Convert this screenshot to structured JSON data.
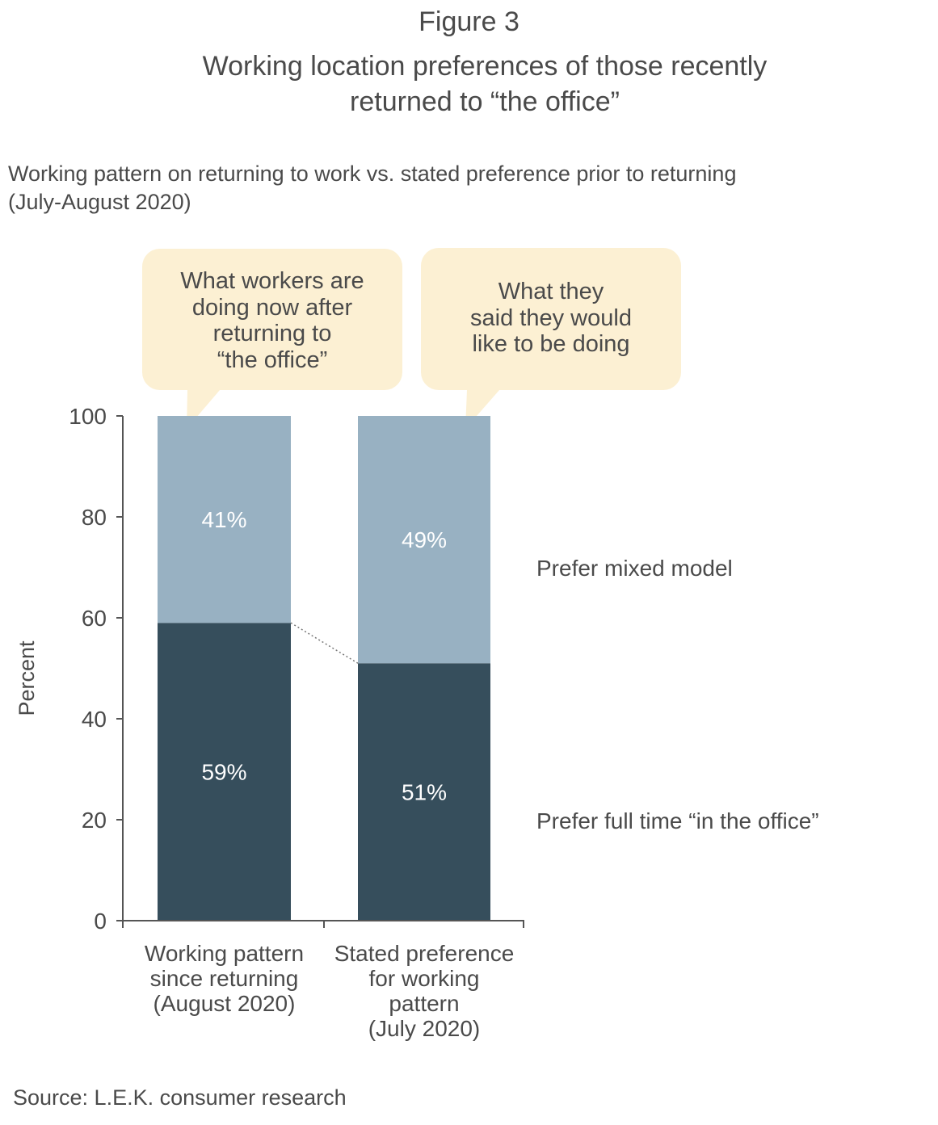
{
  "figure_label": "Figure 3",
  "title": "Working location preferences of those recently\nreturned to “the office”",
  "subtitle": "Working pattern on returning to work vs. stated preference prior to returning\n(July-August 2020)",
  "source": "Source: L.E.K. consumer research",
  "colors": {
    "full_time": "#364e5c",
    "mixed": "#98b1c2",
    "callout_bg": "#fcf0d3",
    "axis": "#555555",
    "text": "#4a4a4a"
  },
  "callouts": [
    {
      "lines": [
        "What workers are",
        "doing now after",
        "returning to",
        "“the office”"
      ]
    },
    {
      "lines": [
        "What they",
        "said they would",
        "like to be doing"
      ]
    }
  ],
  "chart_data": {
    "type": "bar",
    "stacked": true,
    "categories": [
      [
        "Working pattern",
        "since returning",
        "(August 2020)"
      ],
      [
        "Stated preference",
        "for working",
        "pattern",
        "(July 2020)"
      ]
    ],
    "series": [
      {
        "name": "Prefer full time “in the office”",
        "values": [
          59,
          51
        ],
        "labels": [
          "59%",
          "51%"
        ],
        "color": "#364e5c"
      },
      {
        "name": "Prefer mixed model",
        "values": [
          41,
          49
        ],
        "labels": [
          "41%",
          "49%"
        ],
        "color": "#98b1c2"
      }
    ],
    "ylabel": "Percent",
    "xlabel": "",
    "ylim": [
      0,
      100
    ],
    "yticks": [
      0,
      20,
      40,
      60,
      80,
      100
    ],
    "legend": "right",
    "grid": false
  }
}
